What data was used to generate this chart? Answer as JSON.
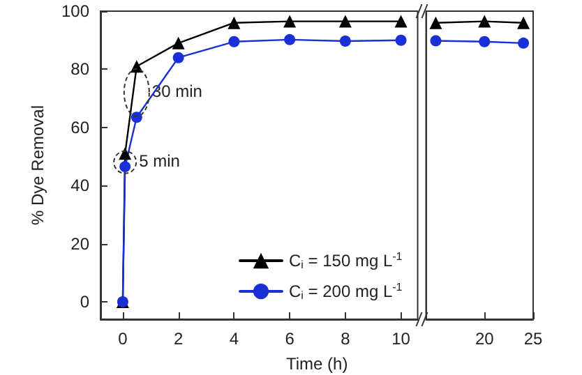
{
  "chart_data": [
    {
      "type": "line",
      "xlabel": "Time (h)",
      "ylabel": "% Dye Removal",
      "x": [
        0,
        0.083,
        0.5,
        2,
        4,
        6,
        8,
        10
      ],
      "series": [
        {
          "name": "C$_{i}$ = 150 mg L$^{-1}$",
          "color": "#000000",
          "marker": "triangle",
          "values": [
            0,
            51,
            81,
            89,
            96,
            96.5,
            96.5,
            96.5
          ]
        },
        {
          "name": "C$_{i}$ = 200 mg L$^{-1}$",
          "color": "#1a2fd6",
          "marker": "circle",
          "values": [
            0,
            46.5,
            63.5,
            84,
            89.5,
            90.2,
            89.7,
            90
          ]
        }
      ],
      "xlim": [
        -0.8,
        10.6
      ],
      "xticks": [
        0,
        2,
        4,
        6,
        8,
        10
      ],
      "ylim": [
        -6,
        100
      ],
      "yticks": [
        0,
        20,
        40,
        60,
        80,
        100
      ],
      "annotations": [
        {
          "text": "30 min",
          "x": 0.5,
          "y": 72
        },
        {
          "text": "5 min",
          "x": 0.083,
          "y": 48
        }
      ],
      "legend": "bottom right",
      "grid": false,
      "line_style": "solid"
    },
    {
      "type": "line",
      "x": [
        15,
        20,
        24
      ],
      "series": [
        {
          "color": "#000000",
          "marker": "triangle",
          "values": [
            96,
            96.5,
            96
          ]
        },
        {
          "color": "#1a2fd6",
          "marker": "circle",
          "values": [
            89.8,
            89.5,
            89
          ]
        }
      ],
      "xlim": [
        14,
        25
      ],
      "xticks": [
        20,
        25
      ],
      "ylim": [
        -6,
        100
      ],
      "yticks": [
        0,
        20,
        40,
        60,
        80,
        100
      ],
      "tick_labels": "x",
      "grid": false,
      "line_style": "solid"
    }
  ]
}
